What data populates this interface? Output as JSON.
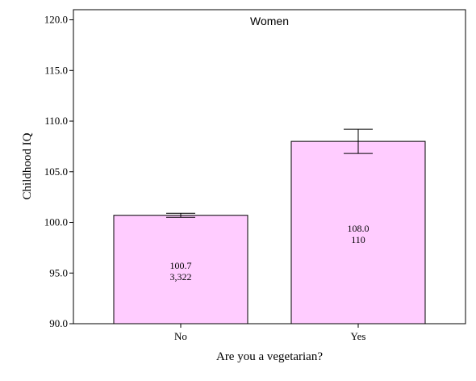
{
  "chart_data": {
    "type": "bar",
    "title": "Women",
    "xlabel": "Are you a vegetarian?",
    "ylabel": "Childhood IQ",
    "ylim": [
      90,
      121
    ],
    "yticks": [
      "90.0",
      "95.0",
      "100.0",
      "105.0",
      "110.0",
      "115.0",
      "120.0"
    ],
    "categories": [
      "No",
      "Yes"
    ],
    "values": [
      100.7,
      108.0
    ],
    "error_low": [
      100.5,
      106.8
    ],
    "error_high": [
      100.9,
      109.2
    ],
    "value_labels": [
      "100.7",
      "108.0"
    ],
    "count_labels": [
      "3,322",
      "110"
    ],
    "grid": false,
    "colors": {
      "bar_fill": "#ffccff",
      "bar_stroke": "#000000"
    }
  }
}
